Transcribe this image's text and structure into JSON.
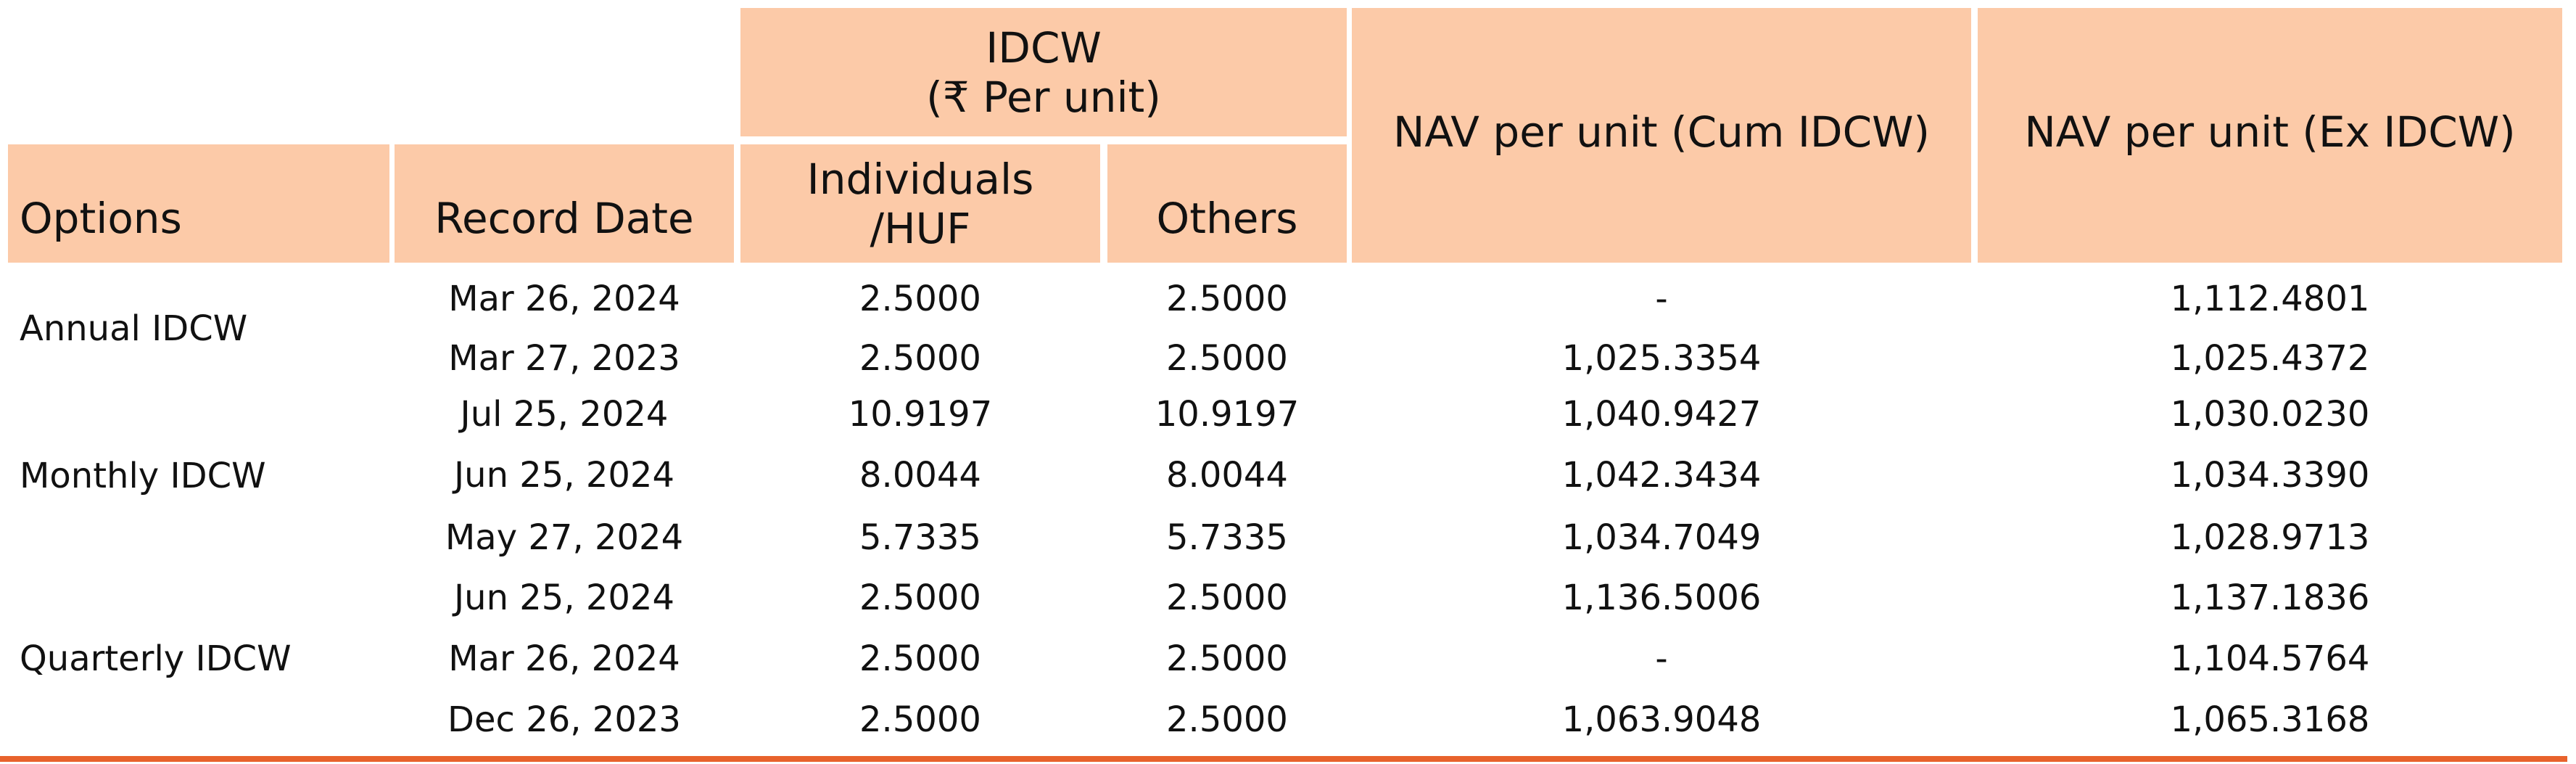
{
  "table": {
    "headers": {
      "options": "Options",
      "record_date": "Record Date",
      "idcw": "IDCW",
      "idcw_unit": "(₹ Per unit)",
      "individuals": [
        "Individuals",
        "/HUF"
      ],
      "others": "Others",
      "nav_cum": "NAV per unit (Cum IDCW)",
      "nav_ex": "NAV per unit (Ex IDCW)"
    },
    "groups": [
      {
        "option": "Annual IDCW",
        "rows": [
          [
            "Mar 26, 2024",
            "2.5000",
            "2.5000",
            "-",
            "1,112.4801"
          ],
          [
            "Mar 27, 2023",
            "2.5000",
            "2.5000",
            "1,025.3354",
            "1,025.4372"
          ]
        ]
      },
      {
        "option": "Monthly IDCW",
        "rows": [
          [
            "Jul 25, 2024",
            "10.9197",
            "10.9197",
            "1,040.9427",
            "1,030.0230"
          ],
          [
            "Jun 25, 2024",
            "8.0044",
            "8.0044",
            "1,042.3434",
            "1,034.3390"
          ],
          [
            "May 27, 2024",
            "5.7335",
            "5.7335",
            "1,034.7049",
            "1,028.9713"
          ]
        ]
      },
      {
        "option": "Quarterly IDCW",
        "rows": [
          [
            "Jun 25, 2024",
            "2.5000",
            "2.5000",
            "1,136.5006",
            "1,137.1836"
          ],
          [
            "Mar 26, 2024",
            "2.5000",
            "2.5000",
            "-",
            "1,104.5764"
          ],
          [
            "Dec 26, 2023",
            "2.5000",
            "2.5000",
            "1,063.9048",
            "1,065.3168"
          ]
        ]
      }
    ]
  }
}
